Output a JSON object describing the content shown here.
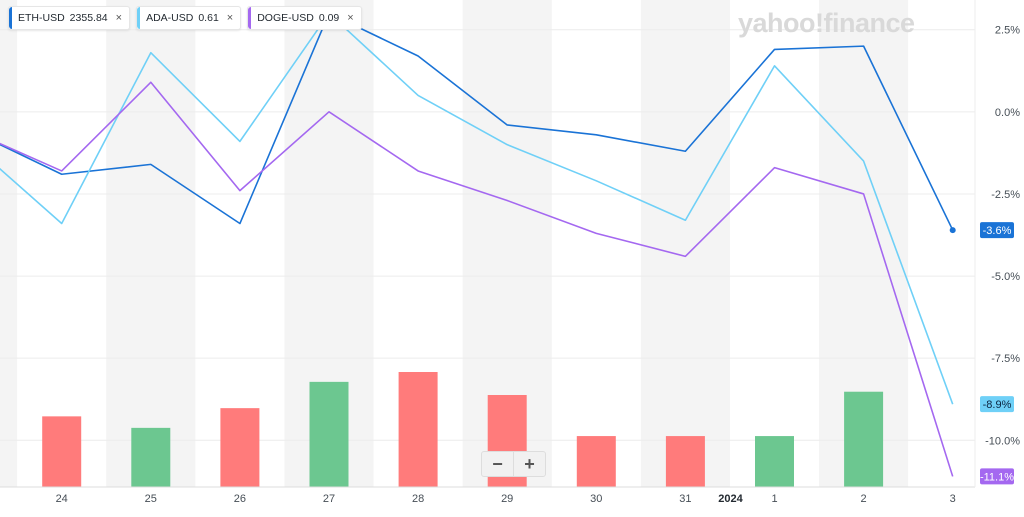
{
  "legend": [
    {
      "symbol": "ETH-USD",
      "value": "2355.84",
      "color": "#1a73d6",
      "close": "×"
    },
    {
      "symbol": "ADA-USD",
      "value": "0.61",
      "color": "#6fd0f7",
      "close": "×"
    },
    {
      "symbol": "DOGE-USD",
      "value": "0.09",
      "color": "#a468f0",
      "close": "×"
    }
  ],
  "logo": "yahoo!finance",
  "zoom": {
    "minus": "−",
    "plus": "+"
  },
  "chart_data": {
    "type": "line",
    "x": [
      "23",
      "24",
      "25",
      "26",
      "27",
      "28",
      "29",
      "30",
      "31",
      "1",
      "2",
      "3"
    ],
    "x_tick_labels": [
      "24",
      "25",
      "26",
      "27",
      "28",
      "29",
      "30",
      "31",
      "1",
      "2",
      "3"
    ],
    "year_marker": "2024",
    "y_tick_labels": [
      "2.5%",
      "0.0%",
      "-2.5%",
      "-5.0%",
      "-7.5%",
      "-10.0%"
    ],
    "ylim": [
      -11.3,
      3.1
    ],
    "grid": "alternating vertical bands",
    "series": [
      {
        "name": "ETH-USD",
        "color": "#1a73d6",
        "values": [
          -0.6,
          -1.9,
          -1.6,
          -3.4,
          3.0,
          1.7,
          -0.4,
          -0.7,
          -1.2,
          1.9,
          2.0,
          -3.6
        ],
        "last_label": "-3.6%"
      },
      {
        "name": "ADA-USD",
        "color": "#6fd0f7",
        "values": [
          -1.0,
          -3.4,
          1.8,
          -0.9,
          3.0,
          0.5,
          -1.0,
          -2.1,
          -3.3,
          1.4,
          -1.5,
          -8.9
        ],
        "last_label": "-8.9%"
      },
      {
        "name": "DOGE-USD",
        "color": "#a468f0",
        "values": [
          -0.6,
          -1.8,
          0.9,
          -2.4,
          0.0,
          -1.8,
          -2.7,
          -3.7,
          -4.4,
          -1.7,
          -2.5,
          -11.1
        ],
        "last_label": "-11.1%"
      }
    ],
    "volume": {
      "colors": {
        "up": "#6cc790",
        "down": "#ff7b7b"
      },
      "bars": [
        {
          "x": "24",
          "relative": 0.43,
          "dir": "down"
        },
        {
          "x": "25",
          "relative": 0.36,
          "dir": "up"
        },
        {
          "x": "26",
          "relative": 0.48,
          "dir": "down"
        },
        {
          "x": "27",
          "relative": 0.64,
          "dir": "up"
        },
        {
          "x": "28",
          "relative": 0.7,
          "dir": "down"
        },
        {
          "x": "29",
          "relative": 0.56,
          "dir": "down"
        },
        {
          "x": "30",
          "relative": 0.31,
          "dir": "down"
        },
        {
          "x": "31",
          "relative": 0.31,
          "dir": "down"
        },
        {
          "x": "1",
          "relative": 0.31,
          "dir": "up"
        },
        {
          "x": "2",
          "relative": 0.58,
          "dir": "up"
        }
      ]
    }
  }
}
